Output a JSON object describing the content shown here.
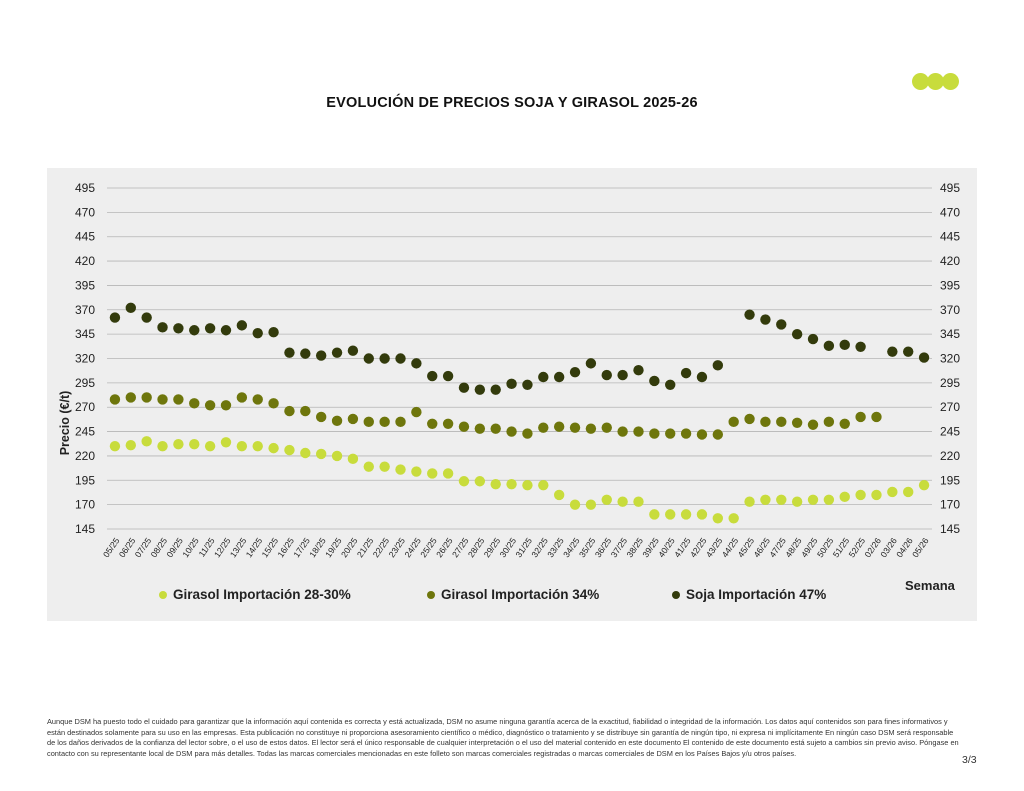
{
  "page": {
    "title": "EVOLUCIÓN DE PRECIOS SOJA Y GIRASOL 2025-26",
    "disclaimer": "Aunque DSM ha puesto todo el cuidado para garantizar que la información aquí contenida es correcta y está actualizada, DSM no asume ninguna garantía acerca de la exactitud, fiabilidad o integridad de la información. Los datos aquí contenidos son para fines informativos y están destinados solamente para su uso en las empresas. Esta publicación no constituye ni proporciona asesoramiento científico o médico, diagnóstico o tratamiento y se distribuye sin garantía de ningún tipo, ni expresa ni implícitamente En ningún caso DSM será responsable de los daños derivados de la confianza del lector sobre, o el uso de estos datos. El lector será el único responsable de cualquier interpretación o el uso del material contenido en este documento El contenido de este documento está sujeto a cambios sin previo aviso. Póngase en contacto con su representante local de DSM para más detalles. Todas las marcas comerciales mencionadas en este folleto son marcas comerciales registradas o marcas comerciales de DSM en los Países Bajos y/u otros países.",
    "page_number": "3/3",
    "logo_color": "#c8dc3c"
  },
  "chart_data": {
    "type": "scatter",
    "title": "EVOLUCIÓN DE PRECIOS SOJA Y GIRASOL 2025-26",
    "ylabel": "Precio (€/t)",
    "xlabel": "Semana",
    "ylim": [
      145,
      495
    ],
    "yticks": [
      145,
      170,
      195,
      220,
      245,
      270,
      295,
      320,
      345,
      370,
      395,
      420,
      445,
      470,
      495
    ],
    "grid": true,
    "legend_position": "bottom",
    "categories": [
      "05/25",
      "06/25",
      "07/25",
      "08/25",
      "09/25",
      "10/25",
      "11/25",
      "12/25",
      "13/25",
      "14/25",
      "15/25",
      "16/25",
      "17/25",
      "18/25",
      "19/25",
      "20/25",
      "21/25",
      "22/25",
      "23/25",
      "24/25",
      "25/25",
      "26/25",
      "27/25",
      "28/25",
      "29/25",
      "30/25",
      "31/25",
      "32/25",
      "33/25",
      "34/25",
      "35/25",
      "36/25",
      "37/25",
      "38/25",
      "39/25",
      "40/25",
      "41/25",
      "42/25",
      "43/25",
      "44/25",
      "45/25",
      "46/25",
      "47/25",
      "48/25",
      "49/25",
      "50/25",
      "51/25",
      "52/25",
      "02/26",
      "03/26",
      "04/26",
      "05/26"
    ],
    "series": [
      {
        "name": "Girasol Importación 28-30%",
        "color": "#c8dc3c",
        "values": [
          230,
          231,
          235,
          230,
          232,
          232,
          230,
          234,
          230,
          230,
          228,
          226,
          223,
          222,
          220,
          217,
          209,
          209,
          206,
          204,
          202,
          202,
          194,
          194,
          191,
          191,
          190,
          190,
          180,
          170,
          170,
          175,
          173,
          173,
          160,
          160,
          160,
          160,
          156,
          156,
          173,
          175,
          175,
          173,
          175,
          175,
          178,
          180,
          180,
          183,
          183,
          190
        ]
      },
      {
        "name": "Girasol Importación 34%",
        "color": "#6e760c",
        "values": [
          278,
          280,
          280,
          278,
          278,
          274,
          272,
          272,
          280,
          278,
          274,
          266,
          266,
          260,
          256,
          258,
          255,
          255,
          255,
          265,
          253,
          253,
          250,
          248,
          248,
          245,
          243,
          249,
          250,
          249,
          248,
          249,
          245,
          245,
          243,
          243,
          243,
          242,
          242,
          255,
          258,
          255,
          255,
          254,
          252,
          255,
          253,
          260,
          260,
          null,
          null,
          null
        ]
      },
      {
        "name": "Soja Importación 47%",
        "color": "#333b0c",
        "values": [
          362,
          372,
          362,
          352,
          351,
          349,
          351,
          349,
          354,
          346,
          347,
          326,
          325,
          323,
          326,
          328,
          320,
          320,
          320,
          315,
          302,
          302,
          290,
          288,
          288,
          294,
          293,
          301,
          301,
          306,
          315,
          303,
          303,
          308,
          297,
          293,
          305,
          301,
          313,
          null,
          365,
          360,
          355,
          345,
          340,
          333,
          334,
          332,
          null,
          327,
          327,
          321
        ]
      }
    ]
  }
}
